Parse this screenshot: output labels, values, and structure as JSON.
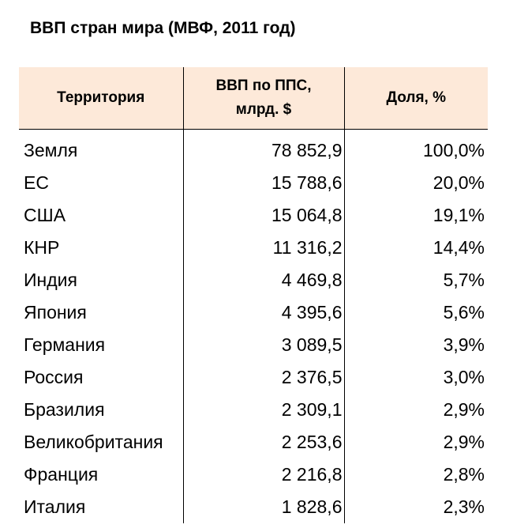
{
  "title": "ВВП стран мира (МВФ, 2011 год)",
  "chart_data": {
    "type": "table",
    "title": "ВВП стран мира (МВФ, 2011 год)",
    "columns": [
      "Территория",
      "ВВП по ППС, млрд. $",
      "Доля, %"
    ],
    "header": {
      "territory": "Территория",
      "gdp_line1": "ВВП по ППС,",
      "gdp_line2": "млрд. $",
      "share": "Доля, %"
    },
    "rows": [
      {
        "territory": "Земля",
        "gdp": "78 852,9",
        "share": "100,0%"
      },
      {
        "territory": "ЕС",
        "gdp": "15 788,6",
        "share": "20,0%"
      },
      {
        "territory": "США",
        "gdp": "15 064,8",
        "share": "19,1%"
      },
      {
        "territory": "КНР",
        "gdp": "11 316,2",
        "share": "14,4%"
      },
      {
        "territory": "Индия",
        "gdp": "4 469,8",
        "share": "5,7%"
      },
      {
        "territory": "Япония",
        "gdp": "4 395,6",
        "share": "5,6%"
      },
      {
        "territory": "Германия",
        "gdp": "3 089,5",
        "share": "3,9%"
      },
      {
        "territory": "Россия",
        "gdp": "2 376,5",
        "share": "3,0%"
      },
      {
        "territory": "Бразилия",
        "gdp": "2 309,1",
        "share": "2,9%"
      },
      {
        "territory": "Великобритания",
        "gdp": "2 253,6",
        "share": "2,9%"
      },
      {
        "territory": "Франция",
        "gdp": "2 216,8",
        "share": "2,8%"
      },
      {
        "territory": "Италия",
        "gdp": "1 828,6",
        "share": "2,3%"
      }
    ]
  },
  "colors": {
    "header_background": "#fde9d9"
  }
}
